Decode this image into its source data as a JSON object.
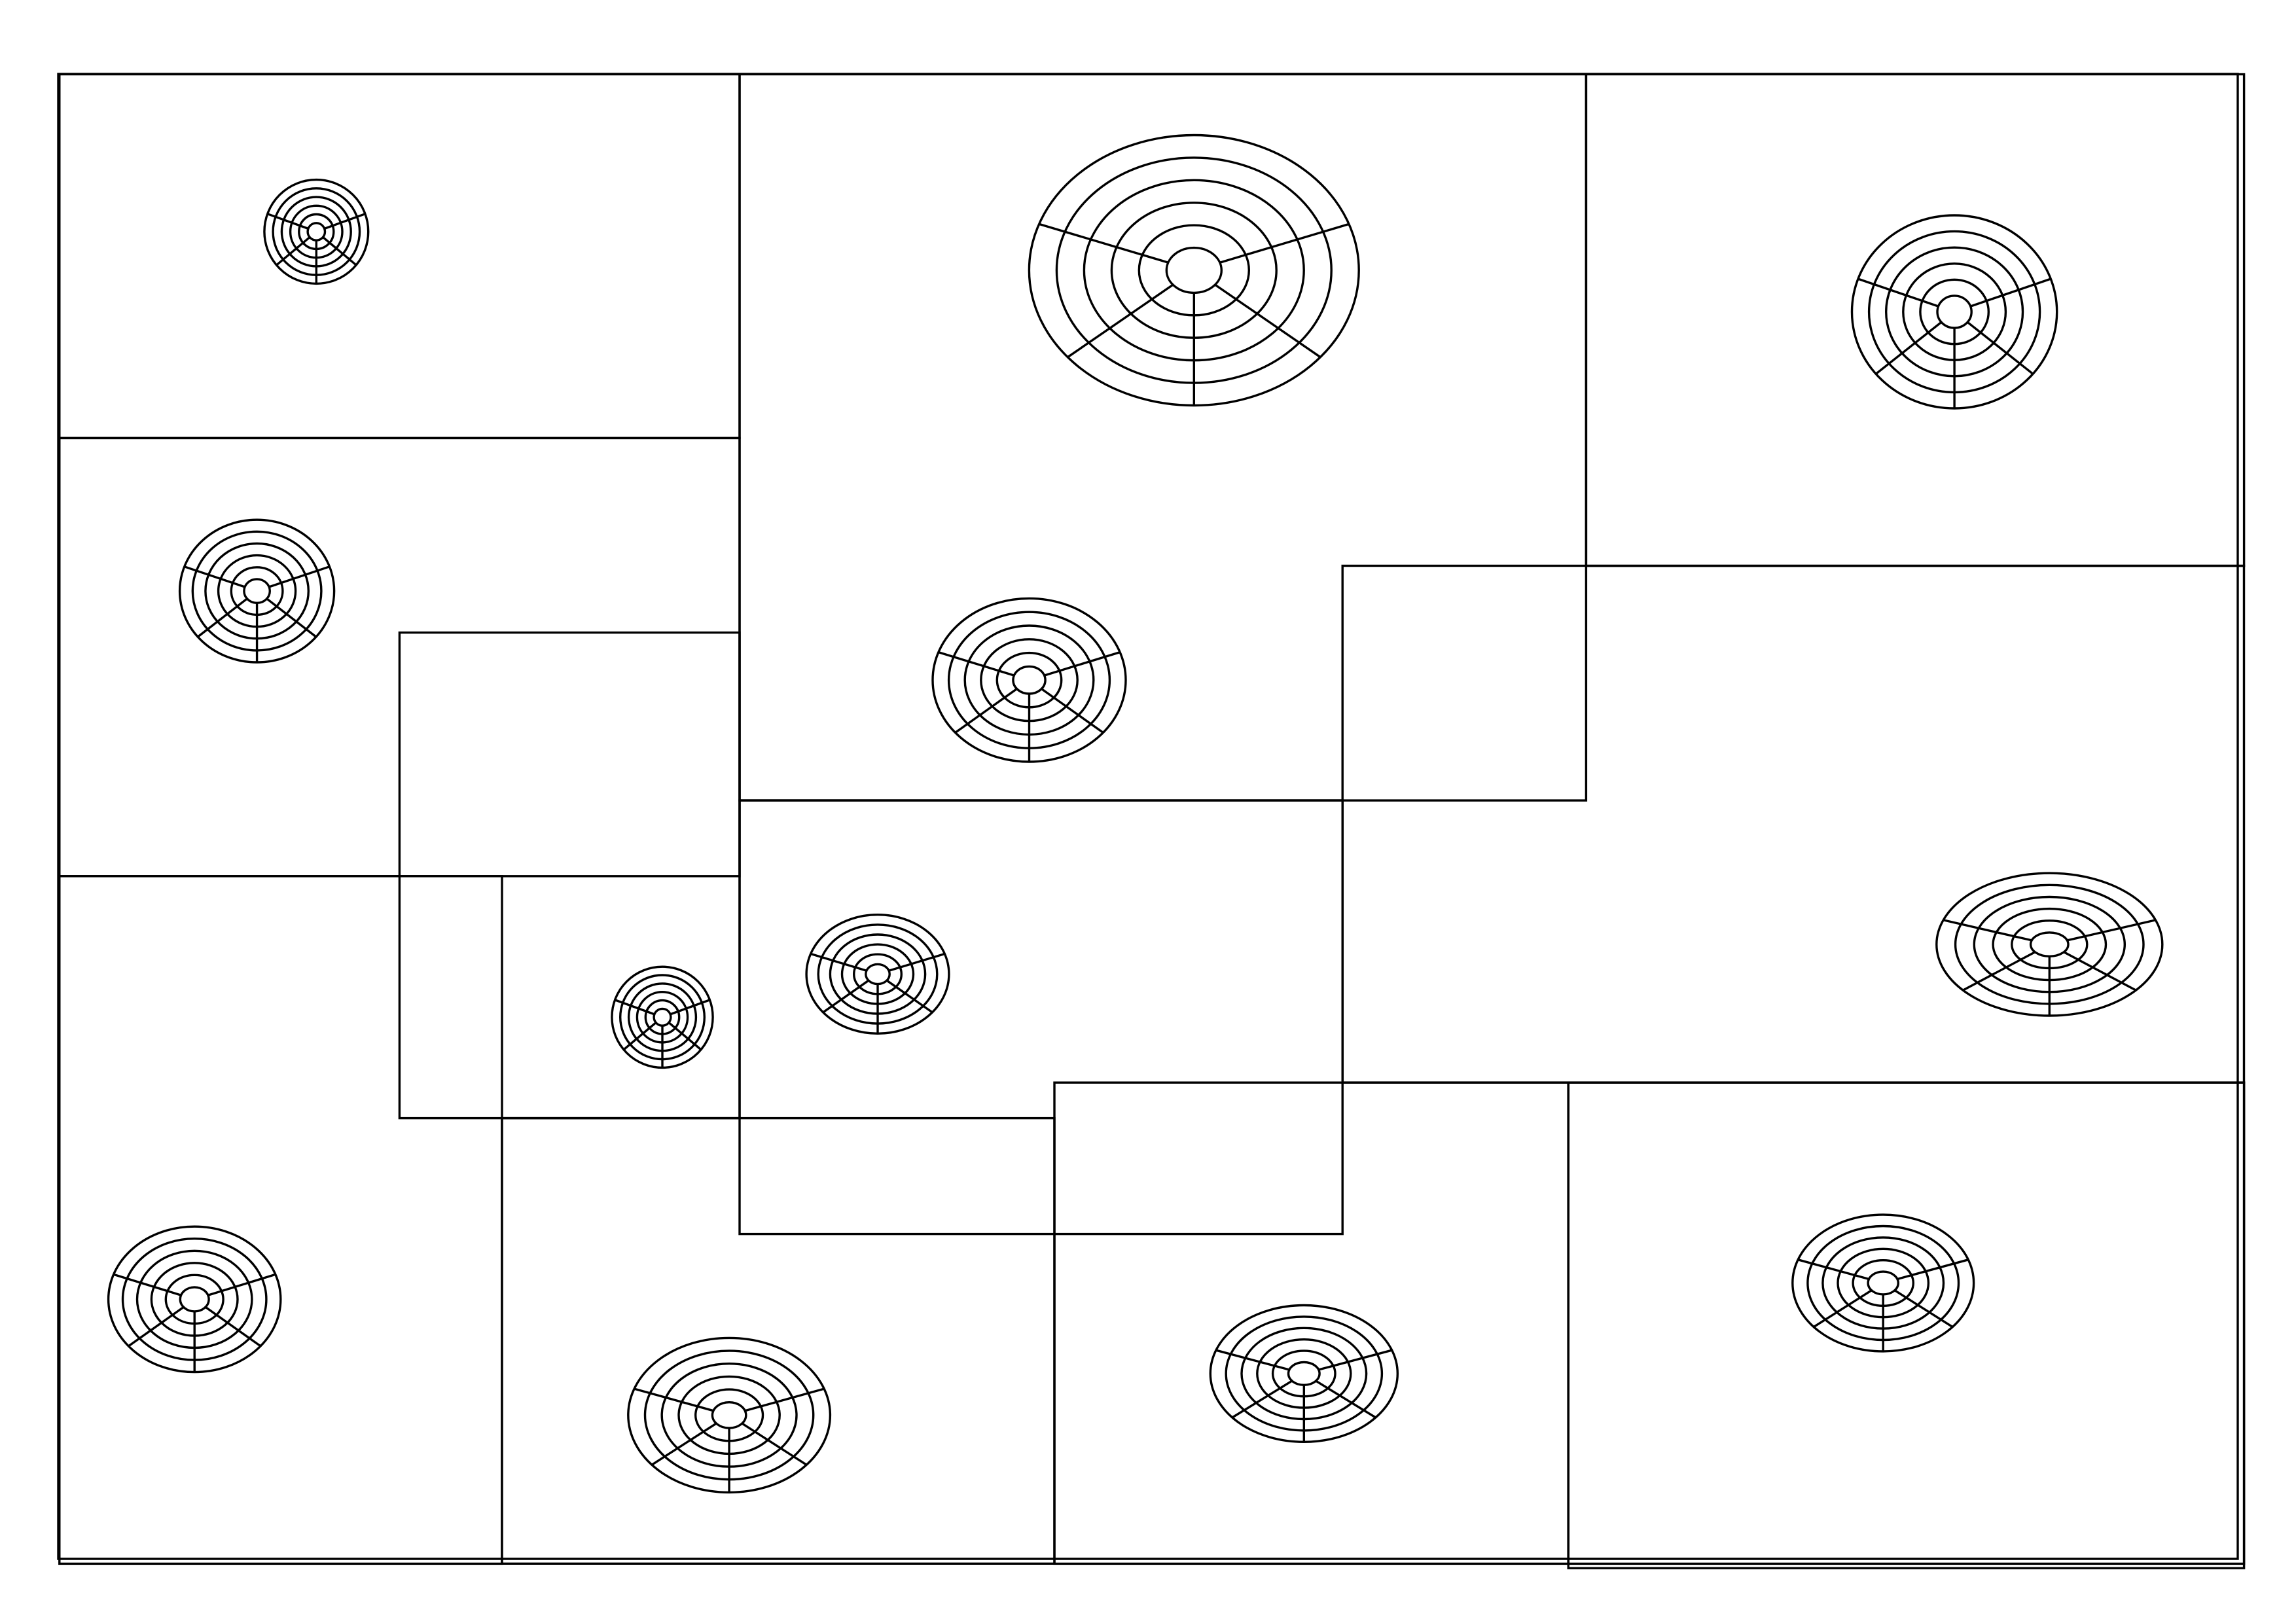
{
  "stroke_color": "#000000",
  "background_color": "#ffffff",
  "panels": [
    {
      "id": "panel-1",
      "target_icon": "concentric-target-icon"
    },
    {
      "id": "panel-2",
      "target_icon": "concentric-target-icon"
    },
    {
      "id": "panel-3",
      "target_icon": "concentric-target-icon"
    },
    {
      "id": "panel-4",
      "target_icon": "concentric-target-icon"
    },
    {
      "id": "panel-5",
      "target_icon": "concentric-target-icon"
    },
    {
      "id": "panel-6",
      "target_icon": "concentric-target-icon"
    },
    {
      "id": "panel-7",
      "target_icon": "concentric-target-icon"
    },
    {
      "id": "panel-8",
      "target_icon": "concentric-target-icon"
    },
    {
      "id": "panel-9",
      "target_icon": "concentric-target-icon"
    },
    {
      "id": "panel-10",
      "target_icon": "concentric-target-icon"
    },
    {
      "id": "panel-11",
      "target_icon": "concentric-target-icon"
    },
    {
      "id": "panel-12",
      "target_icon": "concentric-target-icon"
    }
  ],
  "target_rings": 5,
  "target_spokes": 5
}
